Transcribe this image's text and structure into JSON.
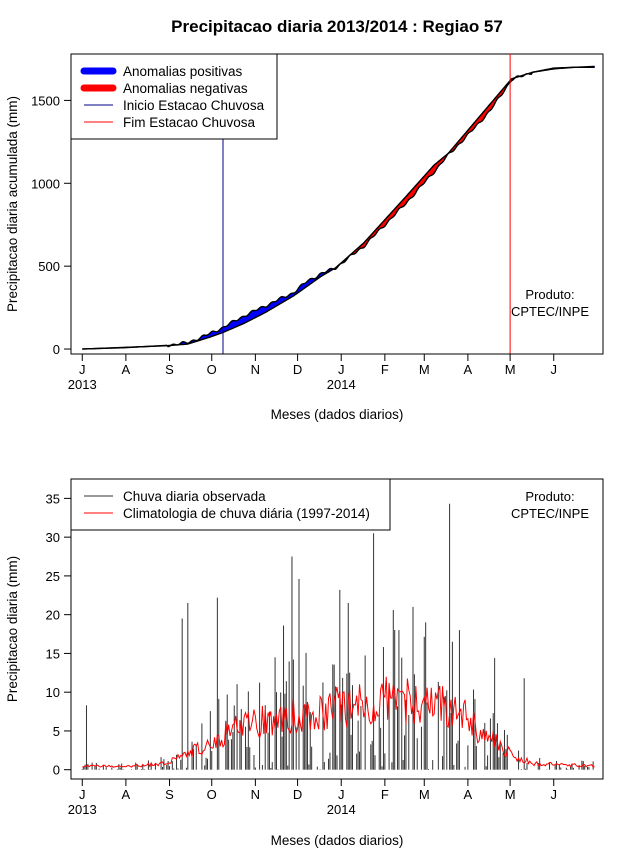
{
  "chart_title": "Precipitacao diaria 2013/2014 : Regiao 57",
  "colors": {
    "positive": "#0000ff",
    "negative": "#ff0000",
    "curve": "#000000",
    "onset": "#00008b",
    "end": "#ff0000",
    "obs_bars": "#333333",
    "clim_line": "#ff0000"
  },
  "chart_data": [
    {
      "type": "area",
      "ylabel": "Precipitacao diaria acumulada (mm)",
      "xlabel": "Meses (dados diarios)",
      "month_labels": [
        "J",
        "A",
        "S",
        "O",
        "N",
        "D",
        "J",
        "F",
        "M",
        "A",
        "M",
        "J"
      ],
      "year_labels": [
        {
          "label": "2013",
          "month_index": 0
        },
        {
          "label": "2014",
          "month_index": 6
        }
      ],
      "yticks": [
        0,
        500,
        1000,
        1500
      ],
      "ylim": [
        -30,
        1780
      ],
      "xlim_days": [
        -8,
        370
      ],
      "product_label": [
        "Produto:",
        "CPTEC/INPE"
      ],
      "legend": {
        "positive": "Anomalias positivas",
        "negative": "Anomalias negativas",
        "onset": "Inicio Estacao Chuvosa",
        "end": "Fim Estacao Chuvosa"
      },
      "onset_day": 100,
      "end_day": 304,
      "observed_cumulative_knots": [
        [
          0,
          0
        ],
        [
          30,
          8
        ],
        [
          60,
          22
        ],
        [
          75,
          38
        ],
        [
          90,
          90
        ],
        [
          100,
          130
        ],
        [
          115,
          200
        ],
        [
          130,
          260
        ],
        [
          150,
          340
        ],
        [
          160,
          410
        ],
        [
          170,
          455
        ],
        [
          180,
          490
        ],
        [
          200,
          620
        ],
        [
          230,
          880
        ],
        [
          250,
          1070
        ],
        [
          260,
          1170
        ],
        [
          275,
          1300
        ],
        [
          290,
          1440
        ],
        [
          305,
          1625
        ],
        [
          320,
          1670
        ],
        [
          335,
          1690
        ],
        [
          350,
          1700
        ],
        [
          364,
          1705
        ]
      ],
      "climatology_cumulative_knots": [
        [
          0,
          0
        ],
        [
          30,
          10
        ],
        [
          60,
          20
        ],
        [
          75,
          30
        ],
        [
          90,
          70
        ],
        [
          100,
          100
        ],
        [
          115,
          155
        ],
        [
          130,
          220
        ],
        [
          150,
          320
        ],
        [
          160,
          380
        ],
        [
          170,
          440
        ],
        [
          180,
          490
        ],
        [
          200,
          640
        ],
        [
          230,
          920
        ],
        [
          250,
          1110
        ],
        [
          260,
          1180
        ],
        [
          275,
          1330
        ],
        [
          290,
          1480
        ],
        [
          305,
          1630
        ],
        [
          320,
          1670
        ],
        [
          335,
          1695
        ],
        [
          350,
          1700
        ],
        [
          364,
          1700
        ]
      ]
    },
    {
      "type": "bar",
      "ylabel": "Precipitacao diaria (mm)",
      "xlabel": "Meses (dados diarios)",
      "month_labels": [
        "J",
        "A",
        "S",
        "O",
        "N",
        "D",
        "J",
        "F",
        "M",
        "A",
        "M",
        "J"
      ],
      "year_labels": [
        {
          "label": "2013",
          "month_index": 0
        },
        {
          "label": "2014",
          "month_index": 6
        }
      ],
      "yticks": [
        0,
        5,
        10,
        15,
        20,
        25,
        30,
        35
      ],
      "ylim": [
        -1.2,
        37.5
      ],
      "xlim_days": [
        -8,
        370
      ],
      "product_label": [
        "Produto:",
        "CPTEC/INPE"
      ],
      "legend": {
        "observed": "Chuva diaria observada",
        "climatology": "Climatologia de chuva diária (1997-2014)"
      },
      "notable_observed_peaks": [
        [
          3,
          8.3
        ],
        [
          71,
          19.5
        ],
        [
          75,
          21.5
        ],
        [
          96,
          22.2
        ],
        [
          137,
          14.5
        ],
        [
          143,
          18.6
        ],
        [
          149,
          27.5
        ],
        [
          154,
          24.6
        ],
        [
          183,
          23.2
        ],
        [
          189,
          21.5
        ],
        [
          207,
          30.5
        ],
        [
          221,
          20.6
        ],
        [
          225,
          18.0
        ],
        [
          235,
          21.0
        ],
        [
          244,
          19.0
        ],
        [
          261,
          34.3
        ],
        [
          268,
          18.0
        ],
        [
          293,
          14.4
        ],
        [
          314,
          11.8
        ]
      ],
      "climatology_knots": [
        [
          0,
          0.5
        ],
        [
          30,
          0.4
        ],
        [
          60,
          0.8
        ],
        [
          80,
          2.5
        ],
        [
          100,
          4.5
        ],
        [
          120,
          6.0
        ],
        [
          150,
          7.0
        ],
        [
          180,
          8.0
        ],
        [
          200,
          8.5
        ],
        [
          220,
          9.0
        ],
        [
          250,
          8.5
        ],
        [
          270,
          7.0
        ],
        [
          290,
          4.0
        ],
        [
          305,
          2.0
        ],
        [
          320,
          0.8
        ],
        [
          364,
          0.5
        ]
      ]
    }
  ]
}
